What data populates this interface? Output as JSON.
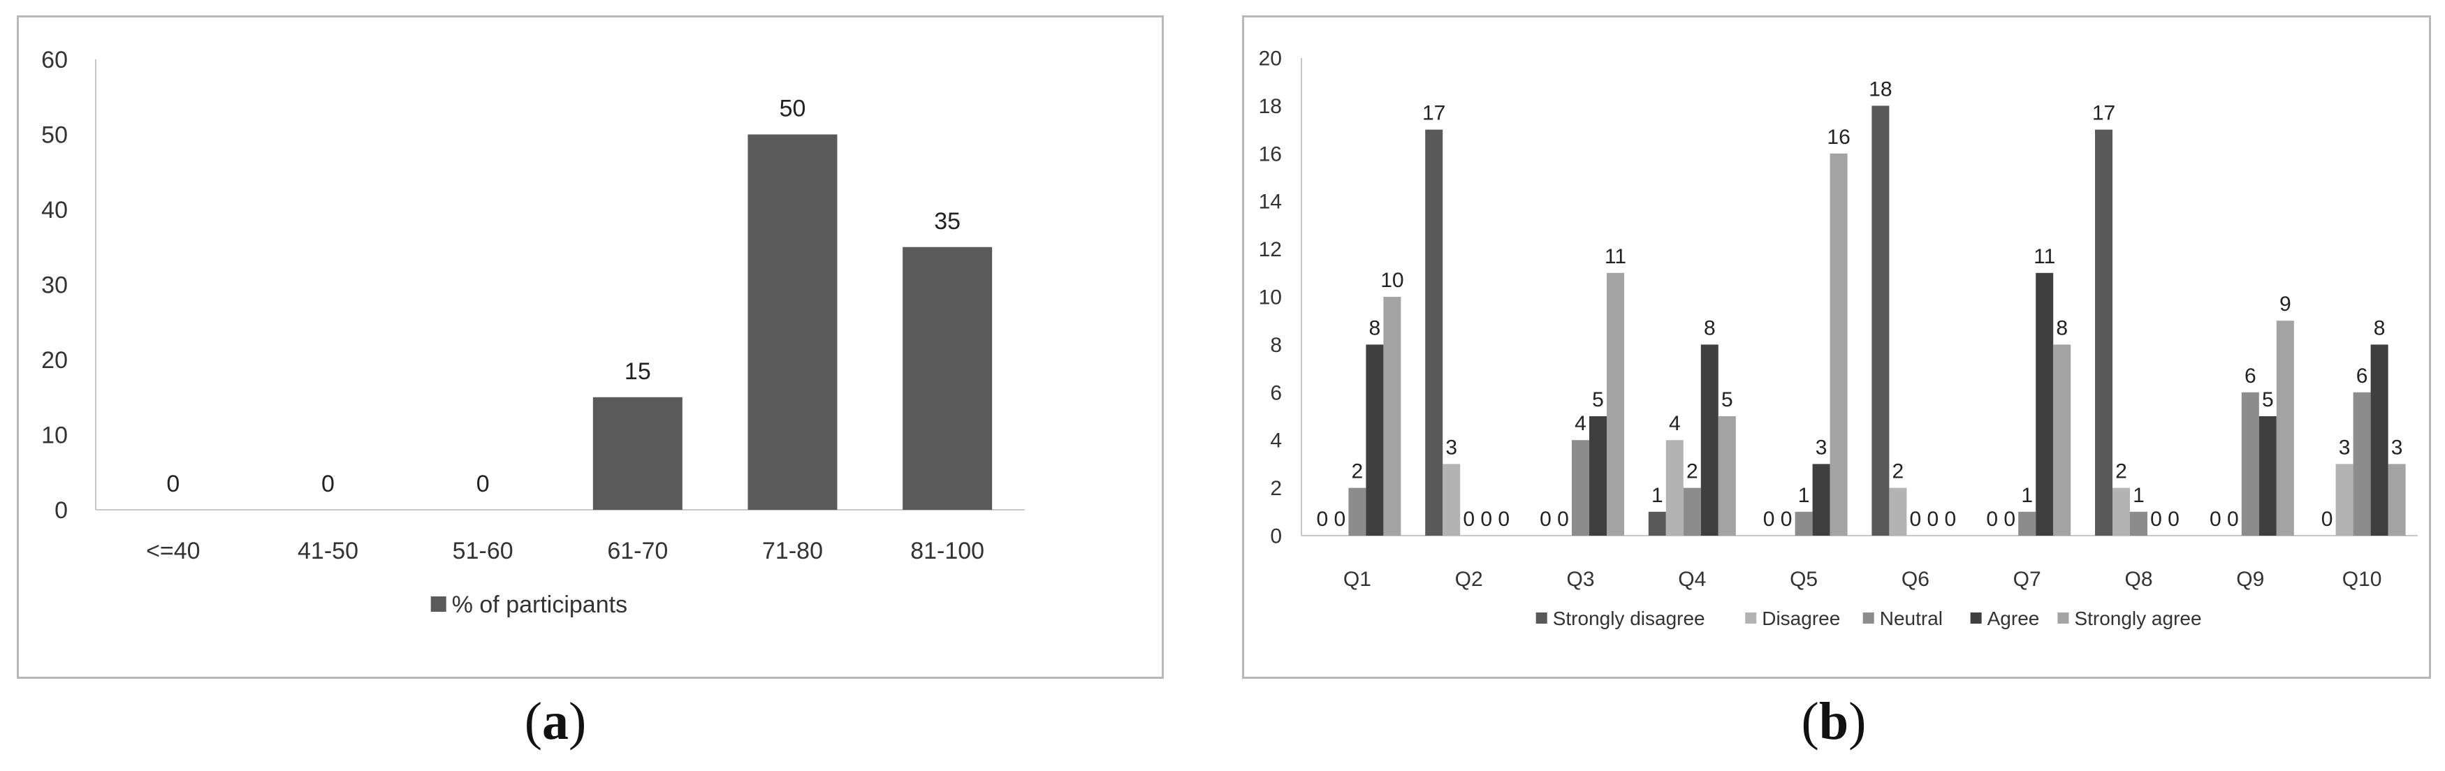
{
  "captions": {
    "a": "a",
    "b": "b"
  },
  "chart_data": [
    {
      "type": "bar",
      "categories": [
        "<=40",
        "41-50",
        "51-60",
        "61-70",
        "71-80",
        "81-100"
      ],
      "series": [
        {
          "name": "% of participants",
          "values": [
            0,
            0,
            0,
            15,
            50,
            35
          ]
        }
      ],
      "data_labels": true,
      "ylim": [
        0,
        60
      ],
      "yticks": [
        0,
        10,
        20,
        30,
        40,
        50,
        60
      ],
      "grid": false,
      "legend_position": "bottom",
      "colors": {
        "% of participants": "#5a5a5a"
      }
    },
    {
      "type": "bar",
      "categories": [
        "Q1",
        "Q2",
        "Q3",
        "Q4",
        "Q5",
        "Q6",
        "Q7",
        "Q8",
        "Q9",
        "Q10"
      ],
      "series": [
        {
          "name": "Strongly disagree",
          "values": [
            0,
            17,
            0,
            1,
            0,
            18,
            0,
            17,
            0,
            0
          ]
        },
        {
          "name": "Disagree",
          "values": [
            0,
            3,
            0,
            4,
            0,
            2,
            0,
            2,
            0,
            3
          ]
        },
        {
          "name": "Neutral",
          "values": [
            2,
            0,
            4,
            2,
            1,
            0,
            1,
            1,
            6,
            6
          ]
        },
        {
          "name": "Agree",
          "values": [
            8,
            0,
            5,
            8,
            3,
            0,
            11,
            0,
            5,
            8
          ]
        },
        {
          "name": "Strongly agree",
          "values": [
            10,
            0,
            11,
            5,
            16,
            0,
            8,
            0,
            9,
            3
          ]
        }
      ],
      "data_labels": true,
      "ylim": [
        0,
        20
      ],
      "yticks": [
        0,
        2,
        4,
        6,
        8,
        10,
        12,
        14,
        16,
        18,
        20
      ],
      "grid": false,
      "legend_position": "bottom",
      "colors": {
        "Strongly disagree": "#595959",
        "Disagree": "#b3b3b3",
        "Neutral": "#8c8c8c",
        "Agree": "#3f3f3f",
        "Strongly agree": "#a3a3a3"
      }
    }
  ]
}
